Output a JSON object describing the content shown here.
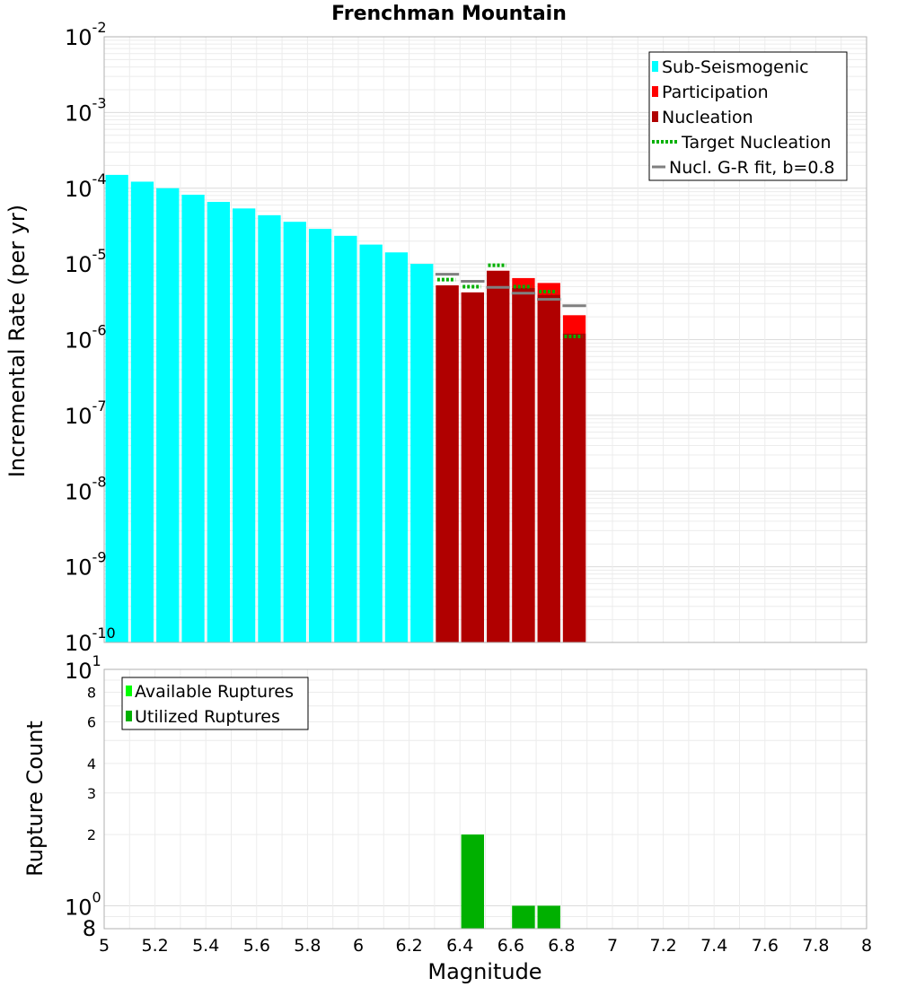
{
  "chart_data": [
    {
      "type": "bar",
      "title": "Frenchman Mountain",
      "xlabel": "",
      "ylabel": "Incremental Rate (per yr)",
      "yscale": "log",
      "ylim": [
        1e-10,
        0.01
      ],
      "xlim": [
        5,
        8
      ],
      "y_tick_labels": [
        {
          "base": "10",
          "exp": "-10"
        },
        {
          "base": "10",
          "exp": "-9"
        },
        {
          "base": "10",
          "exp": "-8"
        },
        {
          "base": "10",
          "exp": "-7"
        },
        {
          "base": "10",
          "exp": "-6"
        },
        {
          "base": "10",
          "exp": "-5"
        },
        {
          "base": "10",
          "exp": "-4"
        },
        {
          "base": "10",
          "exp": "-3"
        },
        {
          "base": "10",
          "exp": "-2"
        }
      ],
      "legend": {
        "position": "top-right",
        "entries": [
          {
            "label": "Sub-Seismogenic",
            "color": "#00FFFF",
            "style": "box"
          },
          {
            "label": "Participation",
            "color": "#FF0000",
            "style": "box"
          },
          {
            "label": "Nucleation",
            "color": "#B00000",
            "style": "box"
          },
          {
            "label": "Target Nucleation",
            "color": "#00B000",
            "style": "dotted-line"
          },
          {
            "label": "Nucl. G-R fit, b=0.8",
            "color": "#808080",
            "style": "line"
          }
        ]
      },
      "series": [
        {
          "name": "Sub-Seismogenic",
          "color": "#00FFFF",
          "x": [
            5.05,
            5.15,
            5.25,
            5.35,
            5.45,
            5.55,
            5.65,
            5.75,
            5.85,
            5.95,
            6.05,
            6.15,
            6.25
          ],
          "values": [
            0.00015,
            0.000122,
            0.0001,
            8.2e-05,
            6.6e-05,
            5.4e-05,
            4.4e-05,
            3.6e-05,
            2.9e-05,
            2.35e-05,
            1.8e-05,
            1.42e-05,
            1e-05
          ]
        },
        {
          "name": "Participation",
          "color": "#FF0000",
          "x": [
            6.35,
            6.45,
            6.55,
            6.65,
            6.75,
            6.85
          ],
          "values": [
            5.2e-06,
            4.2e-06,
            8.1e-06,
            6.5e-06,
            5.6e-06,
            2.1e-06
          ]
        },
        {
          "name": "Nucleation",
          "color": "#B00000",
          "x": [
            6.35,
            6.45,
            6.55,
            6.65,
            6.75,
            6.85
          ],
          "values": [
            5.2e-06,
            4.2e-06,
            8.1e-06,
            4.8e-06,
            3.9e-06,
            1.2e-06
          ]
        },
        {
          "name": "Target Nucleation",
          "color": "#00B000",
          "x": [
            6.35,
            6.45,
            6.55,
            6.65,
            6.75,
            6.85
          ],
          "values": [
            6.2e-06,
            5e-06,
            9.6e-06,
            5e-06,
            4.3e-06,
            1.1e-06
          ]
        },
        {
          "name": "Nucl. G-R fit, b=0.8",
          "color": "#808080",
          "x": [
            6.35,
            6.45,
            6.55,
            6.65,
            6.75,
            6.85
          ],
          "values": [
            7.3e-06,
            5.9e-06,
            4.9e-06,
            4.1e-06,
            3.4e-06,
            2.8e-06
          ]
        }
      ]
    },
    {
      "type": "bar",
      "title": "",
      "xlabel": "Magnitude",
      "ylabel": "Rupture Count",
      "yscale": "log",
      "ylim": [
        0.8,
        10
      ],
      "xlim": [
        5,
        8
      ],
      "x_ticks": [
        "5",
        "5.2",
        "5.4",
        "5.6",
        "5.8",
        "6",
        "6.2",
        "6.4",
        "6.6",
        "6.8",
        "7",
        "7.2",
        "7.4",
        "7.6",
        "7.8",
        "8"
      ],
      "y_major_ticks": [
        {
          "value": 1,
          "base": "10",
          "exp": "0"
        },
        {
          "value": 10,
          "base": "10",
          "exp": "1"
        }
      ],
      "y_minor_ticks": [
        {
          "value": 0.8,
          "label": "8"
        },
        {
          "value": 2,
          "label": "2"
        },
        {
          "value": 3,
          "label": "3"
        },
        {
          "value": 4,
          "label": "4"
        },
        {
          "value": 6,
          "label": "6"
        },
        {
          "value": 8,
          "label": "8"
        }
      ],
      "legend": {
        "position": "top-left",
        "entries": [
          {
            "label": "Available Ruptures",
            "color": "#00FF00",
            "style": "box"
          },
          {
            "label": "Utilized Ruptures",
            "color": "#00B000",
            "style": "box"
          }
        ]
      },
      "series": [
        {
          "name": "Available Ruptures",
          "color": "#00FF00",
          "x": [
            6.45,
            6.65,
            6.75
          ],
          "values": [
            2,
            1,
            1
          ]
        },
        {
          "name": "Utilized Ruptures",
          "color": "#00B000",
          "x": [
            6.45,
            6.65,
            6.75
          ],
          "values": [
            2,
            1,
            1
          ]
        }
      ]
    }
  ]
}
